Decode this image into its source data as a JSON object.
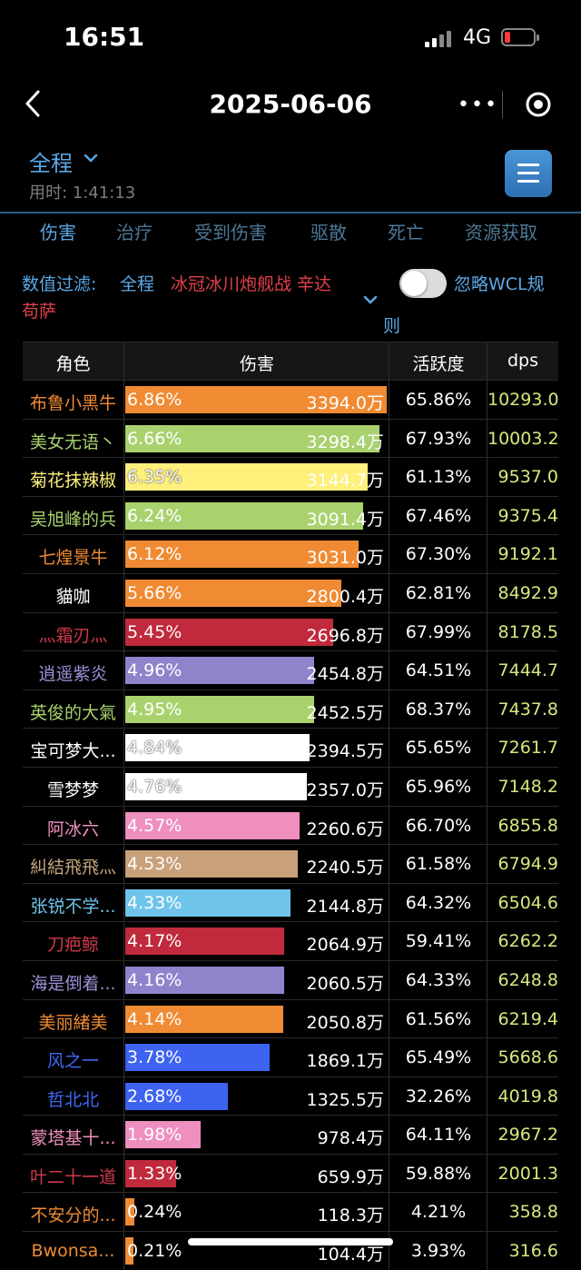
{
  "status": {
    "time": "16:51",
    "network": "4G"
  },
  "nav": {
    "title": "2025-06-06"
  },
  "header": {
    "range": "全程",
    "elapsed": "用时:  1:41:13"
  },
  "tabs": [
    "伤害",
    "治疗",
    "受到伤害",
    "驱散",
    "死亡",
    "资源获取"
  ],
  "filter": {
    "label": "数值过滤:",
    "scope": "全程",
    "target_line1": "冰冠冰川炮舰战 辛达",
    "target_line2": "苟萨",
    "toggle_label_line1": "忽略WCL规",
    "toggle_label_line2": "则",
    "toggle_on": false
  },
  "table": {
    "columns": [
      "角色",
      "伤害",
      "活跃度",
      "dps"
    ],
    "rows": [
      {
        "name": "布鲁小黑牛",
        "name_color": "#f08b33",
        "bar_color": "#f08b33",
        "pct": "6.86%",
        "fill": 0.0686,
        "damage": "3394.0万",
        "activity": "65.86%",
        "dps": "10293.0"
      },
      {
        "name": "美女无语丶",
        "name_color": "#a9d26e",
        "bar_color": "#a9d26e",
        "pct": "6.66%",
        "fill": 0.0666,
        "damage": "3298.4万",
        "activity": "67.93%",
        "dps": "10003.2"
      },
      {
        "name": "菊花抹辣椒",
        "name_color": "#fef07b",
        "bar_color": "#fef07b",
        "pct": "6.35%",
        "fill": 0.0635,
        "damage": "3144.7万",
        "activity": "61.13%",
        "dps": "9537.0"
      },
      {
        "name": "吴旭峰的兵",
        "name_color": "#a9d26e",
        "bar_color": "#a9d26e",
        "pct": "6.24%",
        "fill": 0.0624,
        "damage": "3091.4万",
        "activity": "67.46%",
        "dps": "9375.4"
      },
      {
        "name": "七煌景牛",
        "name_color": "#f08b33",
        "bar_color": "#f08b33",
        "pct": "6.12%",
        "fill": 0.0612,
        "damage": "3031.0万",
        "activity": "67.30%",
        "dps": "9192.1"
      },
      {
        "name": "貓咖",
        "name_color": "#ffffff",
        "bar_color": "#f08b33",
        "pct": "5.66%",
        "fill": 0.0566,
        "damage": "2800.4万",
        "activity": "62.81%",
        "dps": "8492.9"
      },
      {
        "name": "灬霜刃灬",
        "name_color": "#d0394a",
        "bar_color": "#c02a3c",
        "pct": "5.45%",
        "fill": 0.0545,
        "damage": "2696.8万",
        "activity": "67.99%",
        "dps": "8178.5"
      },
      {
        "name": "逍遥紫炎",
        "name_color": "#9e90d8",
        "bar_color": "#8f84cc",
        "pct": "4.96%",
        "fill": 0.0496,
        "damage": "2454.8万",
        "activity": "64.51%",
        "dps": "7444.7"
      },
      {
        "name": "英俊的大氣",
        "name_color": "#a9d26e",
        "bar_color": "#a9d26e",
        "pct": "4.95%",
        "fill": 0.0495,
        "damage": "2452.5万",
        "activity": "68.37%",
        "dps": "7437.8"
      },
      {
        "name": "宝可梦大...",
        "name_color": "#ffffff",
        "bar_color": "#ffffff",
        "pct": "4.84%",
        "fill": 0.0484,
        "damage": "2394.5万",
        "activity": "65.65%",
        "dps": "7261.7"
      },
      {
        "name": "雪梦梦",
        "name_color": "#ffffff",
        "bar_color": "#ffffff",
        "pct": "4.76%",
        "fill": 0.0476,
        "damage": "2357.0万",
        "activity": "65.96%",
        "dps": "7148.2"
      },
      {
        "name": "阿冰六",
        "name_color": "#f090c0",
        "bar_color": "#ee8fc0",
        "pct": "4.57%",
        "fill": 0.0457,
        "damage": "2260.6万",
        "activity": "66.70%",
        "dps": "6855.8"
      },
      {
        "name": "糾結飛飛灬",
        "name_color": "#c8a680",
        "bar_color": "#c8a07a",
        "pct": "4.53%",
        "fill": 0.0453,
        "damage": "2240.5万",
        "activity": "61.58%",
        "dps": "6794.9"
      },
      {
        "name": "张锐不学...",
        "name_color": "#6fc4ea",
        "bar_color": "#6fc4ea",
        "pct": "4.33%",
        "fill": 0.0433,
        "damage": "2144.8万",
        "activity": "64.32%",
        "dps": "6504.6"
      },
      {
        "name": "刀疤鲸",
        "name_color": "#d0394a",
        "bar_color": "#c02a3c",
        "pct": "4.17%",
        "fill": 0.0417,
        "damage": "2064.9万",
        "activity": "59.41%",
        "dps": "6262.2"
      },
      {
        "name": "海是倒着...",
        "name_color": "#9e90d8",
        "bar_color": "#8f84cc",
        "pct": "4.16%",
        "fill": 0.0416,
        "damage": "2060.5万",
        "activity": "64.33%",
        "dps": "6248.8"
      },
      {
        "name": "美丽緒美",
        "name_color": "#f08b33",
        "bar_color": "#f08b33",
        "pct": "4.14%",
        "fill": 0.0414,
        "damage": "2050.8万",
        "activity": "61.56%",
        "dps": "6219.4"
      },
      {
        "name": "风之一",
        "name_color": "#3f68f5",
        "bar_color": "#3d63f0",
        "pct": "3.78%",
        "fill": 0.0378,
        "damage": "1869.1万",
        "activity": "65.49%",
        "dps": "5668.6"
      },
      {
        "name": "哲北北",
        "name_color": "#3f68f5",
        "bar_color": "#3d63f0",
        "pct": "2.68%",
        "fill": 0.0268,
        "damage": "1325.5万",
        "activity": "32.26%",
        "dps": "4019.8"
      },
      {
        "name": "蒙塔基十...",
        "name_color": "#f090c0",
        "bar_color": "#ee8fc0",
        "pct": "1.98%",
        "fill": 0.0198,
        "damage": "978.4万",
        "activity": "64.11%",
        "dps": "2967.2"
      },
      {
        "name": "叶二十一道",
        "name_color": "#d0394a",
        "bar_color": "#c02a3c",
        "pct": "1.33%",
        "fill": 0.0133,
        "damage": "659.9万",
        "activity": "59.88%",
        "dps": "2001.3"
      },
      {
        "name": "不安分的...",
        "name_color": "#f08b33",
        "bar_color": "#f08b33",
        "pct": "0.24%",
        "fill": 0.0024,
        "damage": "118.3万",
        "activity": "4.21%",
        "dps": "358.8"
      },
      {
        "name": "Bwonsa...",
        "name_color": "#f08b33",
        "bar_color": "#f08b33",
        "pct": "0.21%",
        "fill": 0.0021,
        "damage": "104.4万",
        "activity": "3.93%",
        "dps": "316.6"
      }
    ]
  }
}
